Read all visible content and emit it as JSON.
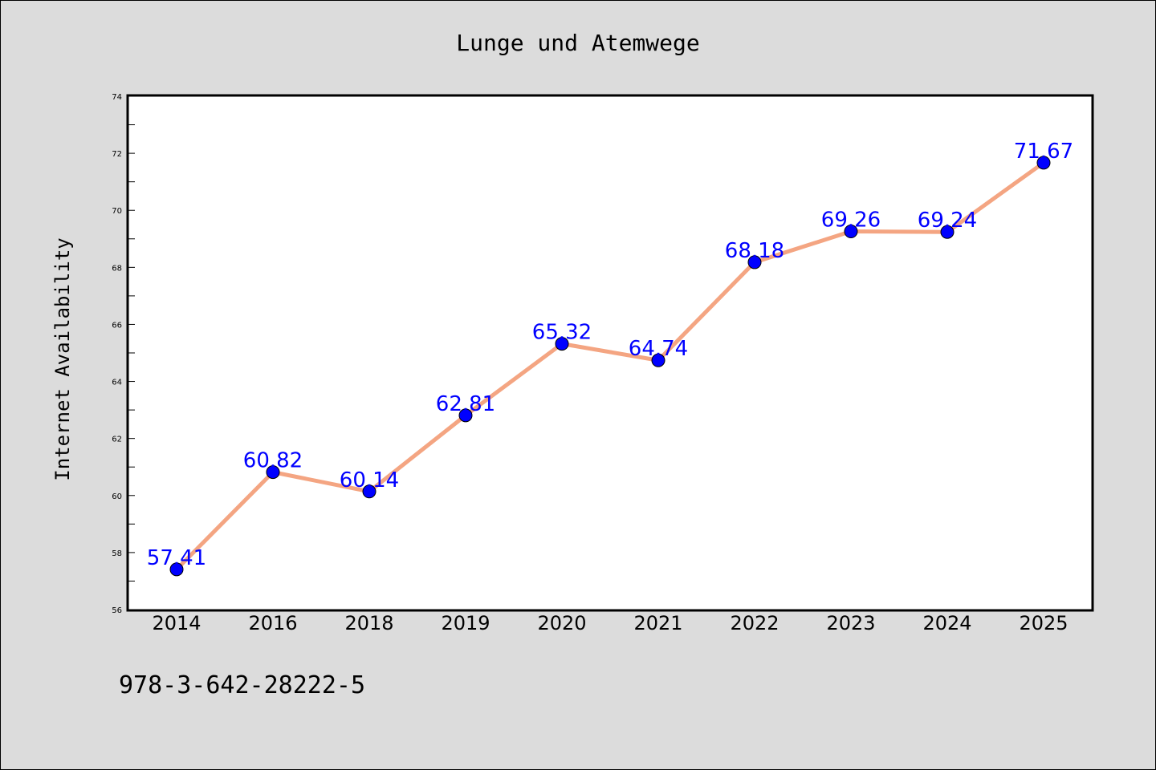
{
  "chart_data": {
    "type": "line",
    "title": "Lunge und Atemwege",
    "xlabel": "",
    "ylabel": "Internet Availability",
    "categories": [
      "2014",
      "2016",
      "2018",
      "2019",
      "2020",
      "2021",
      "2022",
      "2023",
      "2024",
      "2025"
    ],
    "series": [
      {
        "values": [
          57.41,
          60.82,
          60.14,
          62.81,
          65.32,
          64.74,
          68.18,
          69.26,
          69.24,
          71.67
        ],
        "labels": [
          "57.41",
          "60.82",
          "60.14",
          "62.81",
          "65.32",
          "64.74",
          "68.18",
          "69.26",
          "69.24",
          "71.67"
        ],
        "line_color": "#f4a582",
        "marker_color": "#0000ff"
      }
    ],
    "yticks": [
      "56",
      "58",
      "60",
      "62",
      "64",
      "66",
      "68",
      "70",
      "72",
      "74"
    ],
    "ylim": [
      56,
      74
    ],
    "grid": false,
    "data_label_color": "#0000ff"
  },
  "footer_text": "978-3-642-28222-5",
  "colors": {
    "background": "#dcdcdc",
    "plot_background": "#ffffff"
  }
}
